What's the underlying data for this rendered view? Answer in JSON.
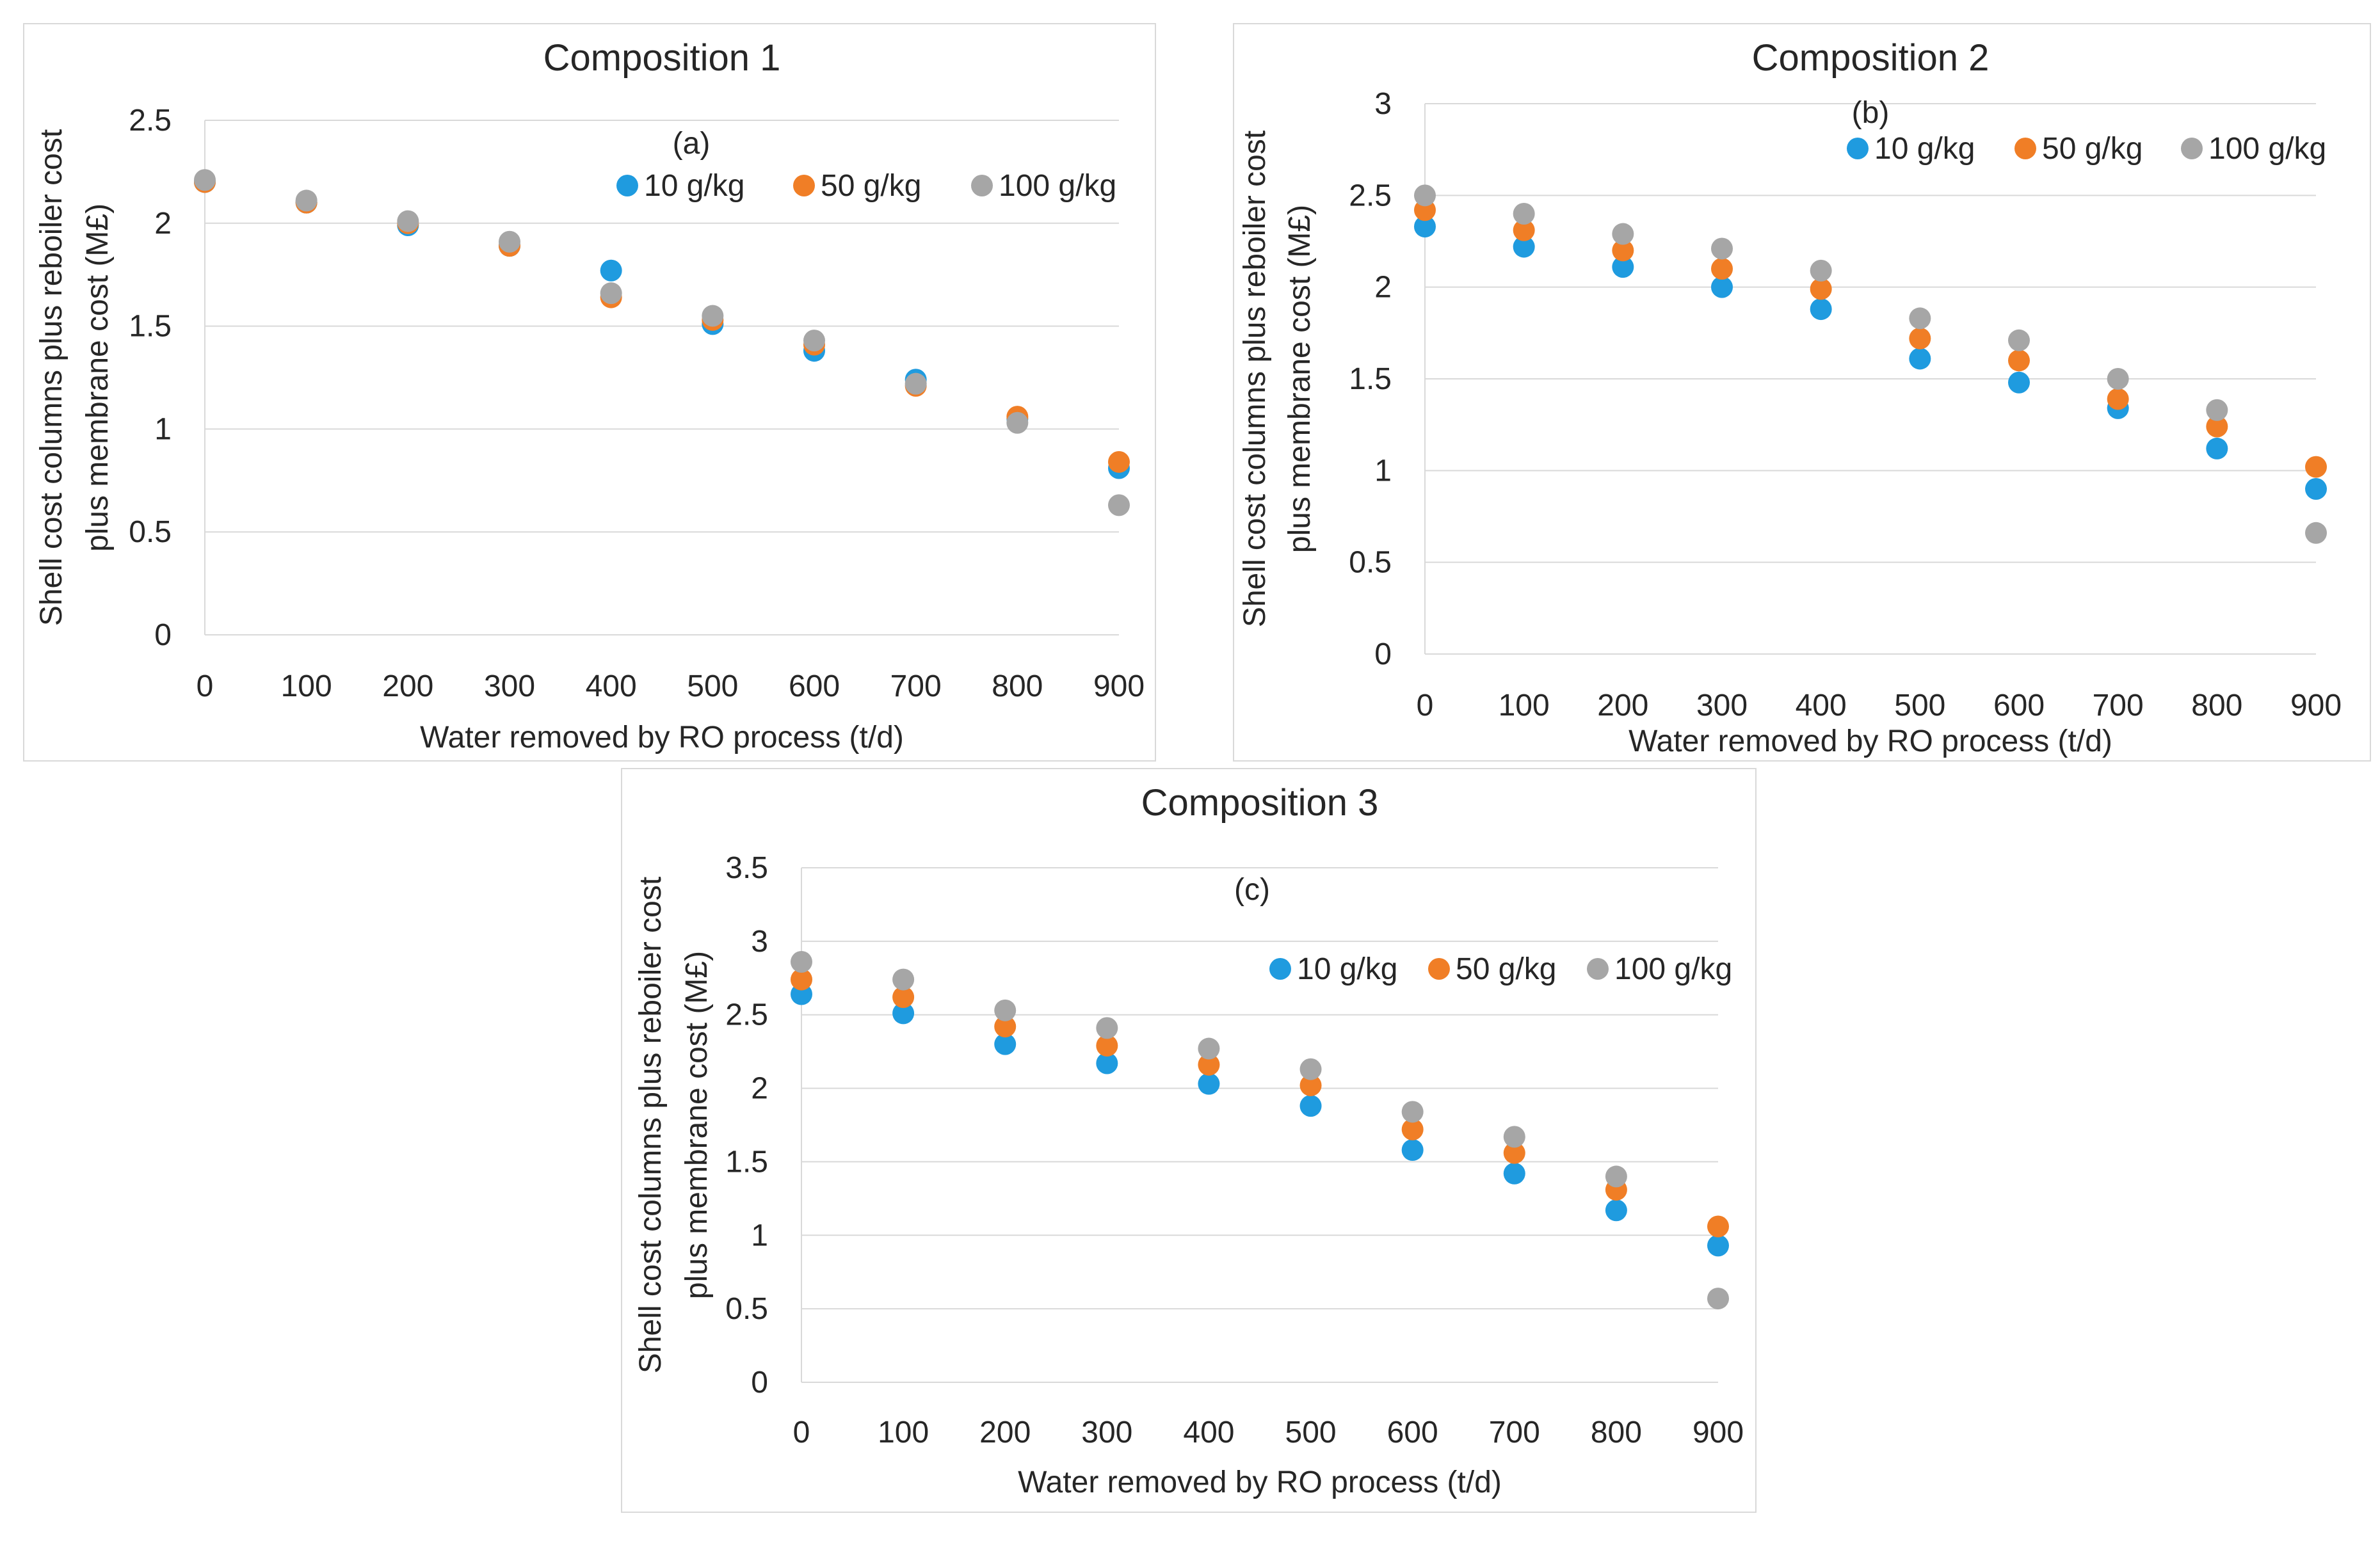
{
  "chart_data": [
    {
      "type": "scatter",
      "title": "Composition 1",
      "annotation": "(a)",
      "xlabel": "Water removed by RO process (t/d)",
      "ylabel": "Shell cost columns plus reboiler cost plus membrane cost (M£)",
      "ylabel_lines": [
        "Shell cost columns plus reboiler cost",
        "plus membrane cost (M£)"
      ],
      "x": [
        0,
        100,
        200,
        300,
        400,
        500,
        600,
        700,
        800,
        900
      ],
      "xlim": [
        0,
        900
      ],
      "ylim": [
        0,
        2.5
      ],
      "xticks": [
        "0",
        "100",
        "200",
        "300",
        "400",
        "500",
        "600",
        "700",
        "800",
        "900"
      ],
      "yticks": [
        "0",
        "0.5",
        "1",
        "1.5",
        "2",
        "2.5"
      ],
      "grid": "horizontal",
      "legend_position": "top-right",
      "series": [
        {
          "name": "10 g/kg",
          "color": "#1f9bdf",
          "values": [
            2.2,
            2.1,
            1.99,
            1.89,
            1.77,
            1.51,
            1.38,
            1.24,
            1.05,
            0.81
          ]
        },
        {
          "name": "50 g/kg",
          "color": "#f07e26",
          "values": [
            2.2,
            2.1,
            2.0,
            1.89,
            1.64,
            1.53,
            1.41,
            1.21,
            1.06,
            0.84
          ]
        },
        {
          "name": "100 g/kg",
          "color": "#a6a6a6",
          "values": [
            2.21,
            2.11,
            2.01,
            1.91,
            1.66,
            1.55,
            1.43,
            1.22,
            1.03,
            0.63
          ]
        }
      ]
    },
    {
      "type": "scatter",
      "title": "Composition 2",
      "annotation": "(b)",
      "xlabel": "Water removed by RO process (t/d)",
      "ylabel": "Shell cost columns plus reboiler cost plus membrane cost (M£)",
      "ylabel_lines": [
        "Shell cost columns plus reboiler cost",
        "plus membrane cost (M£)"
      ],
      "x": [
        0,
        100,
        200,
        300,
        400,
        500,
        600,
        700,
        800,
        900
      ],
      "xlim": [
        0,
        900
      ],
      "ylim": [
        0,
        3
      ],
      "xticks": [
        "0",
        "100",
        "200",
        "300",
        "400",
        "500",
        "600",
        "700",
        "800",
        "900"
      ],
      "yticks": [
        "0",
        "0.5",
        "1",
        "1.5",
        "2",
        "2.5",
        "3"
      ],
      "grid": "horizontal",
      "legend_position": "top-right",
      "series": [
        {
          "name": "10 g/kg",
          "color": "#1f9bdf",
          "values": [
            2.33,
            2.22,
            2.11,
            2.0,
            1.88,
            1.61,
            1.48,
            1.34,
            1.12,
            0.9
          ]
        },
        {
          "name": "50 g/kg",
          "color": "#f07e26",
          "values": [
            2.42,
            2.31,
            2.2,
            2.1,
            1.99,
            1.72,
            1.6,
            1.39,
            1.24,
            1.02
          ]
        },
        {
          "name": "100 g/kg",
          "color": "#a6a6a6",
          "values": [
            2.5,
            2.4,
            2.29,
            2.21,
            2.09,
            1.83,
            1.71,
            1.5,
            1.33,
            0.66
          ]
        }
      ]
    },
    {
      "type": "scatter",
      "title": "Composition 3",
      "annotation": "(c)",
      "xlabel": "Water removed by RO process (t/d)",
      "ylabel": "Shell cost columns plus reboiler cost plus membrane cost (M£)",
      "ylabel_lines": [
        "Shell cost columns plus reboiler cost",
        "plus membrane cost (M£)"
      ],
      "x": [
        0,
        100,
        200,
        300,
        400,
        500,
        600,
        700,
        800,
        900
      ],
      "xlim": [
        0,
        900
      ],
      "ylim": [
        0,
        3.5
      ],
      "xticks": [
        "0",
        "100",
        "200",
        "300",
        "400",
        "500",
        "600",
        "700",
        "800",
        "900"
      ],
      "yticks": [
        "0",
        "0.5",
        "1",
        "1.5",
        "2",
        "2.5",
        "3",
        "3.5"
      ],
      "grid": "horizontal",
      "legend_position": "top-right",
      "series": [
        {
          "name": "10 g/kg",
          "color": "#1f9bdf",
          "values": [
            2.64,
            2.51,
            2.3,
            2.17,
            2.03,
            1.88,
            1.58,
            1.42,
            1.17,
            0.93
          ]
        },
        {
          "name": "50 g/kg",
          "color": "#f07e26",
          "values": [
            2.74,
            2.62,
            2.42,
            2.29,
            2.16,
            2.02,
            1.72,
            1.56,
            1.31,
            1.06
          ]
        },
        {
          "name": "100 g/kg",
          "color": "#a6a6a6",
          "values": [
            2.86,
            2.74,
            2.53,
            2.41,
            2.27,
            2.13,
            1.84,
            1.67,
            1.4,
            0.57
          ]
        }
      ]
    }
  ]
}
